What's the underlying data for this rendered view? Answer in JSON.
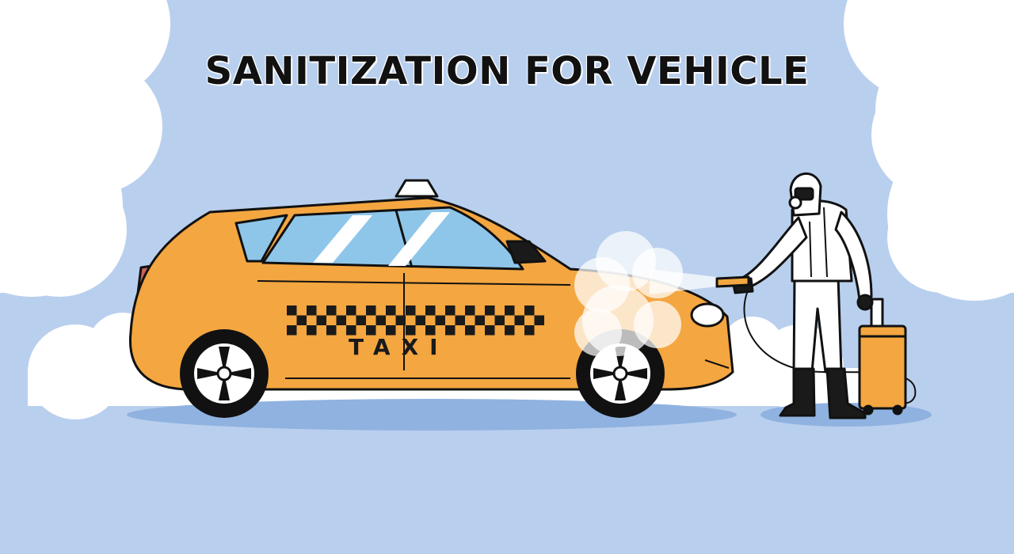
{
  "headline": "SANITIZATION FOR VEHICLE",
  "taxi_door_label": "TAXI",
  "colors": {
    "background": "#b9cfee",
    "cloud": "#ffffff",
    "taxi_body": "#f4a640",
    "taxi_window": "#8ec6ea",
    "taxi_rear_light": "#c9625a",
    "ground_shadow": "#8fb2e0",
    "hazmat_suit": "#ffffff",
    "sprayer_tank": "#f4a640",
    "outline": "#111111"
  },
  "icons": {
    "taxi": "taxi-car-illustration",
    "worker": "hazmat-worker-illustration",
    "spray": "disinfectant-spray-cloud",
    "tank": "sprayer-tank-icon"
  }
}
